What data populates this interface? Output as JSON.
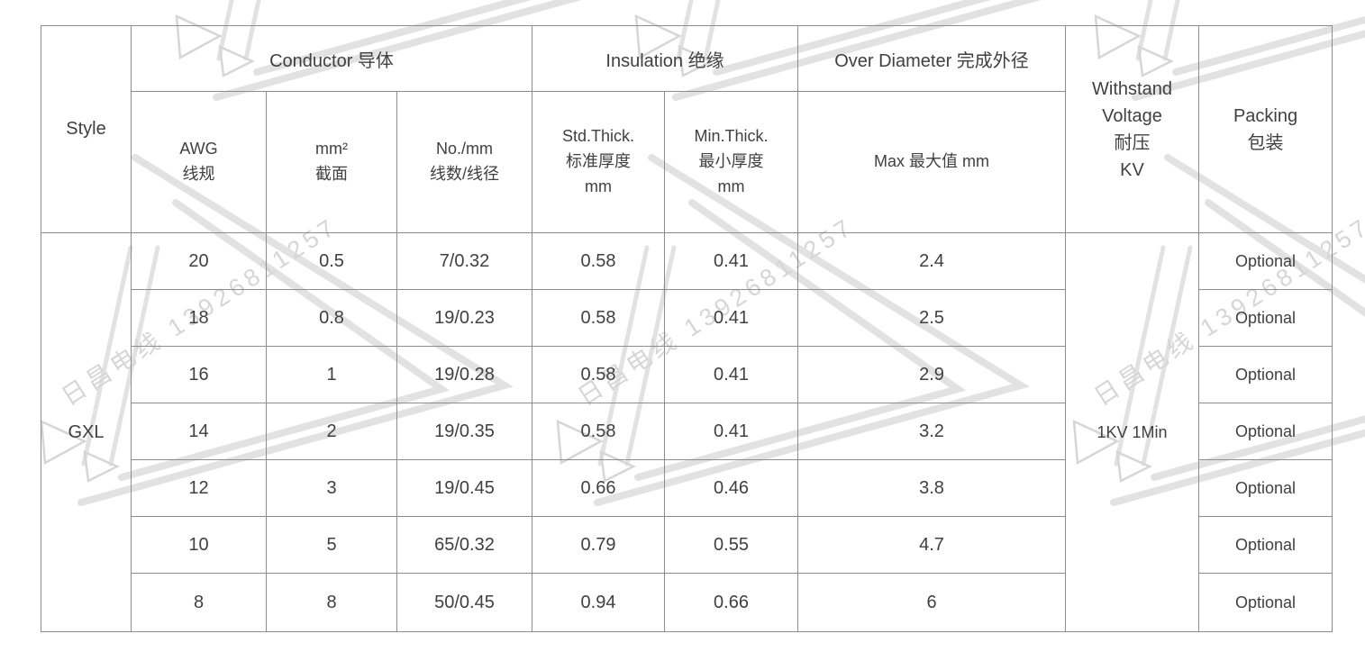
{
  "watermark": {
    "text": "日昌电线 13926811257",
    "text_color": "#d6d6d6",
    "line_color": "#e2e2e2"
  },
  "table": {
    "style_label": "Style",
    "style_value": "GXL",
    "groups": {
      "conductor": "Conductor 导体",
      "insulation": "Insulation 绝缘",
      "over_diameter": "Over Diameter 完成外径",
      "withstand_voltage": "Withstand\nVoltage\n耐压\nKV",
      "packing": "Packing\n包装"
    },
    "columns": {
      "awg": "AWG\n线规",
      "mm2": "mm²\n截面",
      "no_mm": "No./mm\n线数/线径",
      "std_thick": "Std.Thick.\n标准厚度\nmm",
      "min_thick": "Min.Thick.\n最小厚度\nmm",
      "max": "Max 最大值 mm"
    },
    "withstand_value": "1KV 1Min",
    "rows": [
      {
        "awg": "20",
        "mm2": "0.5",
        "no_mm": "7/0.32",
        "std": "0.58",
        "min": "0.41",
        "max": "2.4",
        "packing": "Optional"
      },
      {
        "awg": "18",
        "mm2": "0.8",
        "no_mm": "19/0.23",
        "std": "0.58",
        "min": "0.41",
        "max": "2.5",
        "packing": "Optional"
      },
      {
        "awg": "16",
        "mm2": "1",
        "no_mm": "19/0.28",
        "std": "0.58",
        "min": "0.41",
        "max": "2.9",
        "packing": "Optional"
      },
      {
        "awg": "14",
        "mm2": "2",
        "no_mm": "19/0.35",
        "std": "0.58",
        "min": "0.41",
        "max": "3.2",
        "packing": "Optional"
      },
      {
        "awg": "12",
        "mm2": "3",
        "no_mm": "19/0.45",
        "std": "0.66",
        "min": "0.46",
        "max": "3.8",
        "packing": "Optional"
      },
      {
        "awg": "10",
        "mm2": "5",
        "no_mm": "65/0.32",
        "std": "0.79",
        "min": "0.55",
        "max": "4.7",
        "packing": "Optional"
      },
      {
        "awg": "8",
        "mm2": "8",
        "no_mm": "50/0.45",
        "std": "0.94",
        "min": "0.66",
        "max": "6",
        "packing": "Optional"
      }
    ],
    "colors": {
      "border": "#8d8d8d",
      "text": "#404040"
    }
  },
  "chart_data": {
    "type": "table",
    "title": "GXL wire specification table",
    "columns": [
      "Style",
      "AWG 线规",
      "mm² 截面",
      "No./mm 线数/线径",
      "Std.Thick. 标准厚度 mm",
      "Min.Thick. 最小厚度 mm",
      "Max 最大值 mm",
      "Withstand Voltage 耐压 KV",
      "Packing 包装"
    ],
    "rows": [
      [
        "GXL",
        "20",
        "0.5",
        "7/0.32",
        "0.58",
        "0.41",
        "2.4",
        "1KV 1Min",
        "Optional"
      ],
      [
        "GXL",
        "18",
        "0.8",
        "19/0.23",
        "0.58",
        "0.41",
        "2.5",
        "1KV 1Min",
        "Optional"
      ],
      [
        "GXL",
        "16",
        "1",
        "19/0.28",
        "0.58",
        "0.41",
        "2.9",
        "1KV 1Min",
        "Optional"
      ],
      [
        "GXL",
        "14",
        "2",
        "19/0.35",
        "0.58",
        "0.41",
        "3.2",
        "1KV 1Min",
        "Optional"
      ],
      [
        "GXL",
        "12",
        "3",
        "19/0.45",
        "0.66",
        "0.46",
        "3.8",
        "1KV 1Min",
        "Optional"
      ],
      [
        "GXL",
        "10",
        "5",
        "65/0.32",
        "0.79",
        "0.55",
        "4.7",
        "1KV 1Min",
        "Optional"
      ],
      [
        "GXL",
        "8",
        "8",
        "50/0.45",
        "0.94",
        "0.66",
        "6",
        "1KV 1Min",
        "Optional"
      ]
    ]
  }
}
